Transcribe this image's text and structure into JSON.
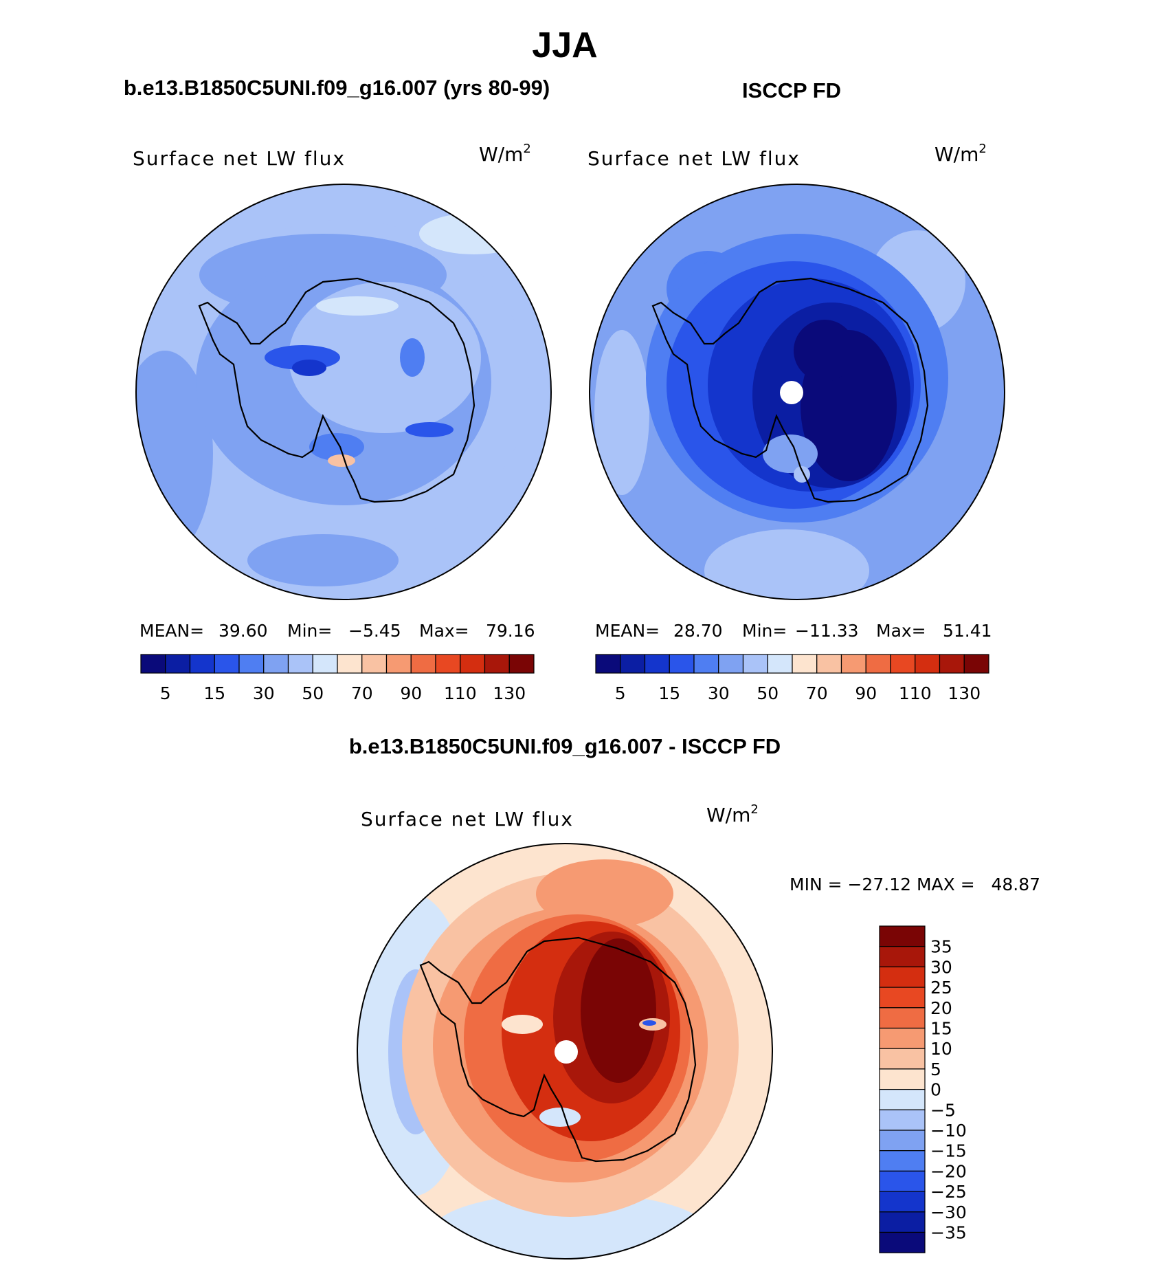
{
  "figure": {
    "season": "JJA"
  },
  "panels": [
    {
      "heading": "b.e13.B1850C5UNI.f09_g16.007 (yrs 80-99)",
      "variable": "Surface net LW flux",
      "units": "W/m",
      "units_sup": "2",
      "stats": {
        "mean_label": "MEAN=",
        "mean": "39.60",
        "min_label": "Min=",
        "min": "−5.45",
        "max_label": "Max=",
        "max": "79.16"
      }
    },
    {
      "heading": "ISCCP FD",
      "variable": "Surface net LW flux",
      "units": "W/m",
      "units_sup": "2",
      "stats": {
        "mean_label": "MEAN=",
        "mean": "28.70",
        "min_label": "Min=",
        "min": "−11.33",
        "max_label": "Max=",
        "max": "51.41"
      }
    }
  ],
  "abs_colorbar": {
    "colors": [
      "#0a0a7a",
      "#0b1ea3",
      "#1435cc",
      "#2a55ea",
      "#4f7ef2",
      "#7fa2f2",
      "#aac3f8",
      "#d4e6fb",
      "#fde4cf",
      "#f9c2a3",
      "#f69a72",
      "#ef6c43",
      "#e84822",
      "#d42e10",
      "#a8170a",
      "#7a0505"
    ],
    "tick_labels": [
      "5",
      "15",
      "30",
      "50",
      "70",
      "90",
      "110",
      "130"
    ]
  },
  "diff": {
    "heading": "b.e13.B1850C5UNI.f09_g16.007 - ISCCP FD",
    "variable": "Surface net LW flux",
    "units": "W/m",
    "units_sup": "2",
    "minmax_text": "MIN = −27.12 MAX =   48.87"
  },
  "diff_colorbar": {
    "colors": [
      "#7a0505",
      "#a8170a",
      "#d42e10",
      "#e84822",
      "#ef6c43",
      "#f69a72",
      "#f9c2a3",
      "#fde4cf",
      "#d4e6fb",
      "#aac3f8",
      "#7fa2f2",
      "#4f7ef2",
      "#2a55ea",
      "#1435cc",
      "#0b1ea3",
      "#0a0a7a"
    ],
    "tick_labels": [
      "35",
      "30",
      "25",
      "20",
      "15",
      "10",
      "5",
      "0",
      "−5",
      "−10",
      "−15",
      "−20",
      "−25",
      "−30",
      "−35"
    ]
  },
  "map_fills": {
    "ocean_model": "#aac3f8",
    "ocean_obs": "#7fa2f2",
    "ocean_diff": "#fde4cf",
    "coast_line": "#000000"
  },
  "chart_data": [
    {
      "type": "heatmap",
      "title": "b.e13.B1850C5UNI.f09_g16.007 (yrs 80-99)",
      "variable": "Surface net LW flux",
      "units": "W/m2",
      "mean": 39.6,
      "min": -5.45,
      "max": 79.16,
      "levels": [
        5,
        10,
        15,
        20,
        30,
        40,
        50,
        60,
        70,
        80,
        90,
        100,
        110,
        120,
        130
      ]
    },
    {
      "type": "heatmap",
      "title": "ISCCP FD",
      "variable": "Surface net LW flux",
      "units": "W/m2",
      "mean": 28.7,
      "min": -11.33,
      "max": 51.41,
      "levels": [
        5,
        10,
        15,
        20,
        30,
        40,
        50,
        60,
        70,
        80,
        90,
        100,
        110,
        120,
        130
      ]
    },
    {
      "type": "heatmap",
      "title": "b.e13.B1850C5UNI.f09_g16.007 - ISCCP FD",
      "variable": "Surface net LW flux",
      "units": "W/m2",
      "min": -27.12,
      "max": 48.87,
      "levels": [
        -35,
        -30,
        -25,
        -20,
        -15,
        -10,
        -5,
        0,
        5,
        10,
        15,
        20,
        25,
        30,
        35
      ]
    }
  ]
}
